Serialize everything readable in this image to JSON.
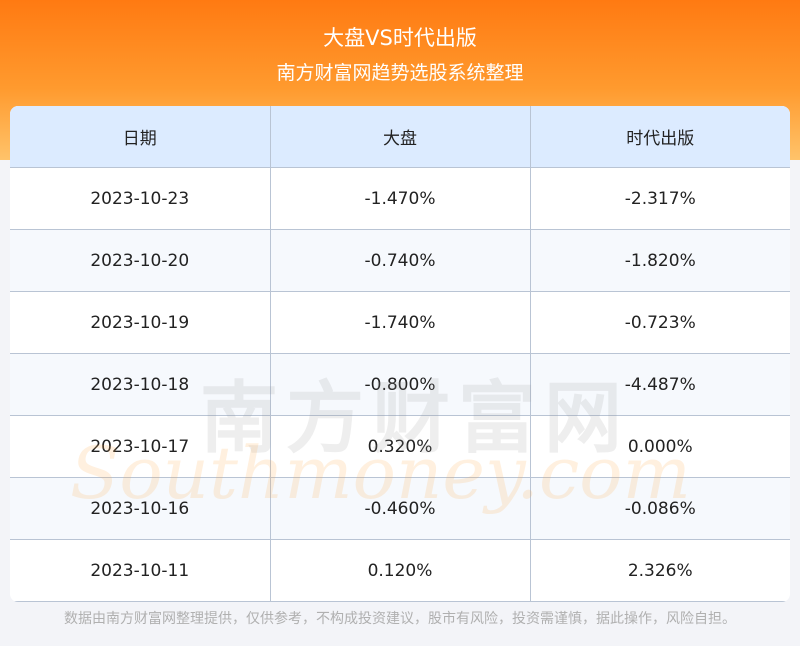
{
  "header": {
    "title": "大盘VS时代出版",
    "subtitle": "南方财富网趋势选股系统整理"
  },
  "table": {
    "columns": [
      "日期",
      "大盘",
      "时代出版"
    ],
    "rows": [
      [
        "2023-10-23",
        "-1.470%",
        "-2.317%"
      ],
      [
        "2023-10-20",
        "-0.740%",
        "-1.820%"
      ],
      [
        "2023-10-19",
        "-1.740%",
        "-0.723%"
      ],
      [
        "2023-10-18",
        "-0.800%",
        "-4.487%"
      ],
      [
        "2023-10-17",
        "0.320%",
        "0.000%"
      ],
      [
        "2023-10-16",
        "-0.460%",
        "-0.086%"
      ],
      [
        "2023-10-11",
        "0.120%",
        "2.326%"
      ]
    ]
  },
  "watermark": {
    "cn": "南方财富网",
    "en": "Southmoney.com"
  },
  "footer": "数据由南方财富网整理提供，仅供参考，不构成投资建议，股市有风险，投资需谨慎，据此操作，风险自担。"
}
